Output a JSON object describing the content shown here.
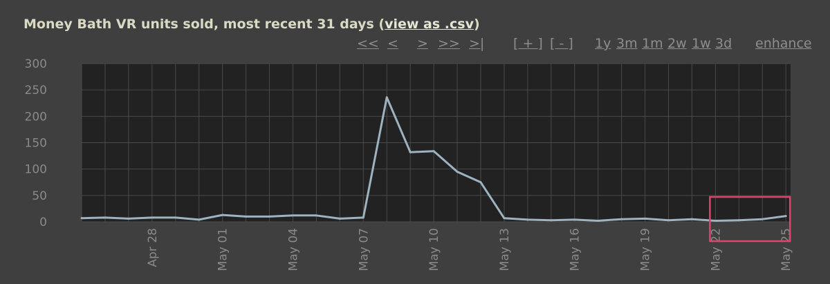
{
  "header": {
    "title_prefix": "Money Bath VR units sold, most recent 31 days (",
    "csv_link": "view as .csv",
    "title_suffix": ")"
  },
  "nav": {
    "first": "<<",
    "prev": "<",
    "next": ">",
    "next_far": ">>",
    "last": ">|",
    "zoom_in": "[ + ]",
    "zoom_out": "[ - ]",
    "range_1y": "1y",
    "range_3m": "3m",
    "range_1m": "1m",
    "range_2w": "2w",
    "range_1w": "1w",
    "range_3d": "3d",
    "enhance": "enhance"
  },
  "colors": {
    "background": "#3f3f3f",
    "plot_background": "#222222",
    "line": "#9db3c0",
    "highlight_box": "#e0436e",
    "grid": "#4a4a4a"
  },
  "chart_data": {
    "type": "line",
    "title": "Money Bath VR units sold, most recent 31 days",
    "xlabel": "",
    "ylabel": "",
    "ylim": [
      0,
      300
    ],
    "yticks": [
      "0",
      "50",
      "100",
      "150",
      "200",
      "250",
      "300"
    ],
    "xticks": [
      {
        "label": "Apr 28",
        "x": 3
      },
      {
        "label": "May 01",
        "x": 6
      },
      {
        "label": "May 04",
        "x": 9
      },
      {
        "label": "May 07",
        "x": 12
      },
      {
        "label": "May 10",
        "x": 15
      },
      {
        "label": "May 13",
        "x": 18
      },
      {
        "label": "May 16",
        "x": 21
      },
      {
        "label": "May 19",
        "x": 24
      },
      {
        "label": "May 22",
        "x": 27
      },
      {
        "label": "May 25",
        "x": 30
      }
    ],
    "grid": true,
    "series": [
      {
        "x": [
          0,
          1,
          2,
          3,
          4,
          5,
          6,
          7,
          8,
          9,
          10,
          11,
          12,
          13,
          14,
          15,
          16,
          17,
          18,
          19,
          20,
          21,
          22,
          23,
          24,
          25,
          26,
          27,
          28,
          29,
          30
        ],
        "values": [
          7,
          8,
          6,
          8,
          8,
          4,
          13,
          10,
          10,
          12,
          12,
          6,
          8,
          236,
          132,
          134,
          95,
          75,
          7,
          4,
          3,
          4,
          2,
          5,
          6,
          3,
          5,
          2,
          3,
          5,
          11
        ]
      }
    ],
    "highlight": {
      "x_start": 27,
      "x_end": 30
    }
  }
}
